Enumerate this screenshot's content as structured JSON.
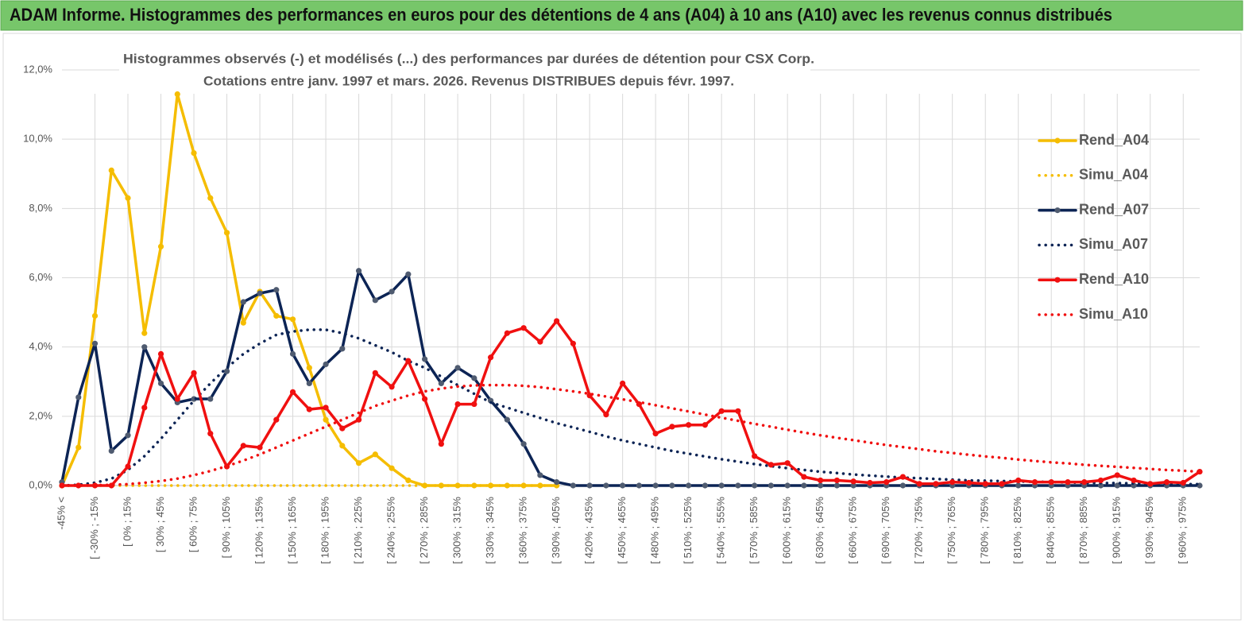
{
  "header": {
    "title": "ADAM Informe. Histogrammes des performances en euros pour des détentions de 4 ans (A04) à 10 ans (A10) avec les revenus connus distribués"
  },
  "chart_data": {
    "type": "line",
    "title": "Histogrammes observés (-) et modélisés (...) des performances par durées de détention pour CSX Corp.",
    "subtitle": "Cotations entre janv. 1997 et mars. 2026. Revenus DISTRIBUES depuis févr. 1997.",
    "categories": [
      "-45% <",
      null,
      "[ -30% ; -15%",
      null,
      "[ 0% ; 15%",
      null,
      "[ 30% ; 45%",
      null,
      "[ 60% ; 75%",
      null,
      "[ 90% ; 105%",
      null,
      "[ 120% ; 135%",
      null,
      "[ 150% ; 165%",
      null,
      "[ 180% ; 195%",
      null,
      "[ 210% ; 225%",
      null,
      "[ 240% ; 255%",
      null,
      "[ 270% ; 285%",
      null,
      "[ 300% ; 315%",
      null,
      "[ 330% ; 345%",
      null,
      "[ 360% ; 375%",
      null,
      "[ 390% ; 405%",
      null,
      "[ 420% ; 435%",
      null,
      "[ 450% ; 465%",
      null,
      "[ 480% ; 495%",
      null,
      "[ 510% ; 525%",
      null,
      "[ 540% ; 555%",
      null,
      "[ 570% ; 585%",
      null,
      "[ 600% ; 615%",
      null,
      "[ 630% ; 645%",
      null,
      "[ 660% ; 675%",
      null,
      "[ 690% ; 705%",
      null,
      "[ 720% ; 735%",
      null,
      "[ 750% ; 765%",
      null,
      "[ 780% ; 795%",
      null,
      "[ 810% ; 825%",
      null,
      "[ 840% ; 855%",
      null,
      "[ 870% ; 885%",
      null,
      "[ 900% ; 915%",
      null,
      "[ 930% ; 945%",
      null,
      "[ 960% ; 975%",
      null
    ],
    "ylim": [
      0,
      12
    ],
    "yticks": [
      {
        "value": 0,
        "label": "0,0%"
      },
      {
        "value": 2,
        "label": "2,0%"
      },
      {
        "value": 4,
        "label": "4,0%"
      },
      {
        "value": 6,
        "label": "6,0%"
      },
      {
        "value": 8,
        "label": "8,0%"
      },
      {
        "value": 10,
        "label": "10,0%"
      },
      {
        "value": 12,
        "label": "12,0%"
      }
    ],
    "grid": true,
    "legend": "right",
    "series": [
      {
        "name": "Rend_A04",
        "color": "#f5bd00",
        "line": "solid",
        "marker_color": "#f5bd00",
        "values": [
          0,
          1.1,
          4.9,
          9.1,
          8.3,
          4.4,
          6.9,
          11.3,
          9.6,
          8.3,
          7.3,
          4.7,
          5.6,
          4.9,
          4.8,
          3.4,
          1.9,
          1.15,
          0.65,
          0.9,
          0.5,
          0.15,
          0,
          0,
          0,
          0,
          0,
          0,
          0,
          0,
          0,
          null,
          null,
          null,
          null,
          null,
          null,
          null,
          null,
          null,
          null,
          null,
          null,
          null,
          null,
          null,
          null,
          null,
          null,
          null,
          null,
          null,
          null,
          null,
          null,
          null,
          null,
          null,
          null,
          null,
          null,
          null,
          null,
          null,
          null,
          null,
          null,
          null,
          null,
          null
        ]
      },
      {
        "name": "Simu_A04",
        "color": "#f5bd00",
        "line": "dotted",
        "values": [
          0,
          0,
          0,
          0,
          0,
          0,
          0,
          0,
          0,
          0,
          0,
          0,
          0,
          0,
          0,
          0,
          0,
          0,
          0,
          0,
          0,
          0,
          0,
          0,
          0,
          0,
          0,
          0,
          0,
          0,
          0,
          null,
          null,
          null,
          null,
          null,
          null,
          null,
          null,
          null,
          null,
          null,
          null,
          null,
          null,
          null,
          null,
          null,
          null,
          null,
          null,
          null,
          null,
          null,
          null,
          null,
          null,
          null,
          null,
          null,
          null,
          null,
          null,
          null,
          null,
          null,
          null,
          null,
          null,
          null
        ]
      },
      {
        "name": "Rend_A07",
        "color": "#0c2455",
        "line": "solid",
        "marker_color": "#4f5b70",
        "values": [
          0.1,
          2.55,
          4.1,
          1.0,
          1.45,
          4.0,
          2.95,
          2.4,
          2.5,
          2.5,
          3.3,
          5.3,
          5.55,
          5.65,
          3.8,
          2.95,
          3.5,
          3.95,
          6.2,
          5.35,
          5.6,
          6.1,
          3.65,
          2.95,
          3.4,
          3.1,
          2.45,
          1.9,
          1.2,
          0.3,
          0.1,
          0,
          0,
          0,
          0,
          0,
          0,
          0,
          0,
          0,
          0,
          0,
          0,
          0,
          0,
          0,
          0,
          0,
          0,
          0,
          0,
          0,
          0,
          0,
          0,
          0,
          0,
          0,
          0,
          0,
          0,
          0,
          0,
          0,
          0,
          0,
          0,
          0,
          0,
          0
        ]
      },
      {
        "name": "Simu_A07",
        "color": "#0c2455",
        "line": "dotted",
        "values": [
          0,
          0.02,
          0.08,
          0.2,
          0.45,
          0.85,
          1.35,
          1.9,
          2.45,
          2.95,
          3.4,
          3.8,
          4.1,
          4.35,
          4.45,
          4.5,
          4.5,
          4.4,
          4.25,
          4.05,
          3.85,
          3.6,
          3.4,
          3.15,
          2.9,
          2.65,
          2.4,
          2.25,
          2.1,
          1.95,
          1.8,
          1.68,
          1.55,
          1.42,
          1.3,
          1.2,
          1.1,
          1.0,
          0.92,
          0.84,
          0.76,
          0.69,
          0.62,
          0.56,
          0.5,
          0.45,
          0.4,
          0.36,
          0.32,
          0.29,
          0.26,
          0.23,
          0.21,
          0.19,
          0.17,
          0.15,
          0.14,
          0.13,
          0.12,
          0.11,
          0.1,
          0.09,
          0.08,
          0.07,
          0.07,
          0.06,
          0.05,
          0.05,
          0.04,
          0.04
        ]
      },
      {
        "name": "Rend_A10",
        "color": "#f01010",
        "line": "solid",
        "marker_color": "#f01010",
        "values": [
          0,
          0,
          0,
          0,
          0.55,
          2.25,
          3.8,
          2.5,
          3.25,
          1.5,
          0.55,
          1.15,
          1.1,
          1.9,
          2.7,
          2.2,
          2.25,
          1.65,
          1.9,
          3.25,
          2.85,
          3.6,
          2.5,
          1.2,
          2.35,
          2.35,
          3.7,
          4.4,
          4.55,
          4.15,
          4.75,
          4.1,
          2.6,
          2.05,
          2.95,
          2.35,
          1.5,
          1.7,
          1.75,
          1.75,
          2.15,
          2.15,
          0.85,
          0.6,
          0.65,
          0.25,
          0.15,
          0.15,
          0.12,
          0.08,
          0.1,
          0.25,
          0.05,
          0.05,
          0.1,
          0.08,
          0.05,
          0.05,
          0.15,
          0.1,
          0.1,
          0.1,
          0.1,
          0.15,
          0.3,
          0.15,
          0.05,
          0.1,
          0.08,
          0.4
        ]
      },
      {
        "name": "Simu_A10",
        "color": "#f01010",
        "line": "dotted",
        "values": [
          0,
          0,
          0.01,
          0.02,
          0.04,
          0.08,
          0.13,
          0.2,
          0.3,
          0.42,
          0.56,
          0.72,
          0.9,
          1.1,
          1.3,
          1.5,
          1.7,
          1.9,
          2.1,
          2.3,
          2.45,
          2.6,
          2.72,
          2.8,
          2.86,
          2.89,
          2.9,
          2.9,
          2.88,
          2.84,
          2.78,
          2.72,
          2.65,
          2.57,
          2.49,
          2.41,
          2.32,
          2.23,
          2.14,
          2.05,
          1.96,
          1.87,
          1.78,
          1.7,
          1.61,
          1.53,
          1.45,
          1.38,
          1.31,
          1.24,
          1.17,
          1.11,
          1.05,
          0.99,
          0.94,
          0.89,
          0.84,
          0.8,
          0.75,
          0.71,
          0.67,
          0.64,
          0.6,
          0.57,
          0.54,
          0.51,
          0.48,
          0.45,
          0.43,
          0.4
        ]
      }
    ]
  }
}
